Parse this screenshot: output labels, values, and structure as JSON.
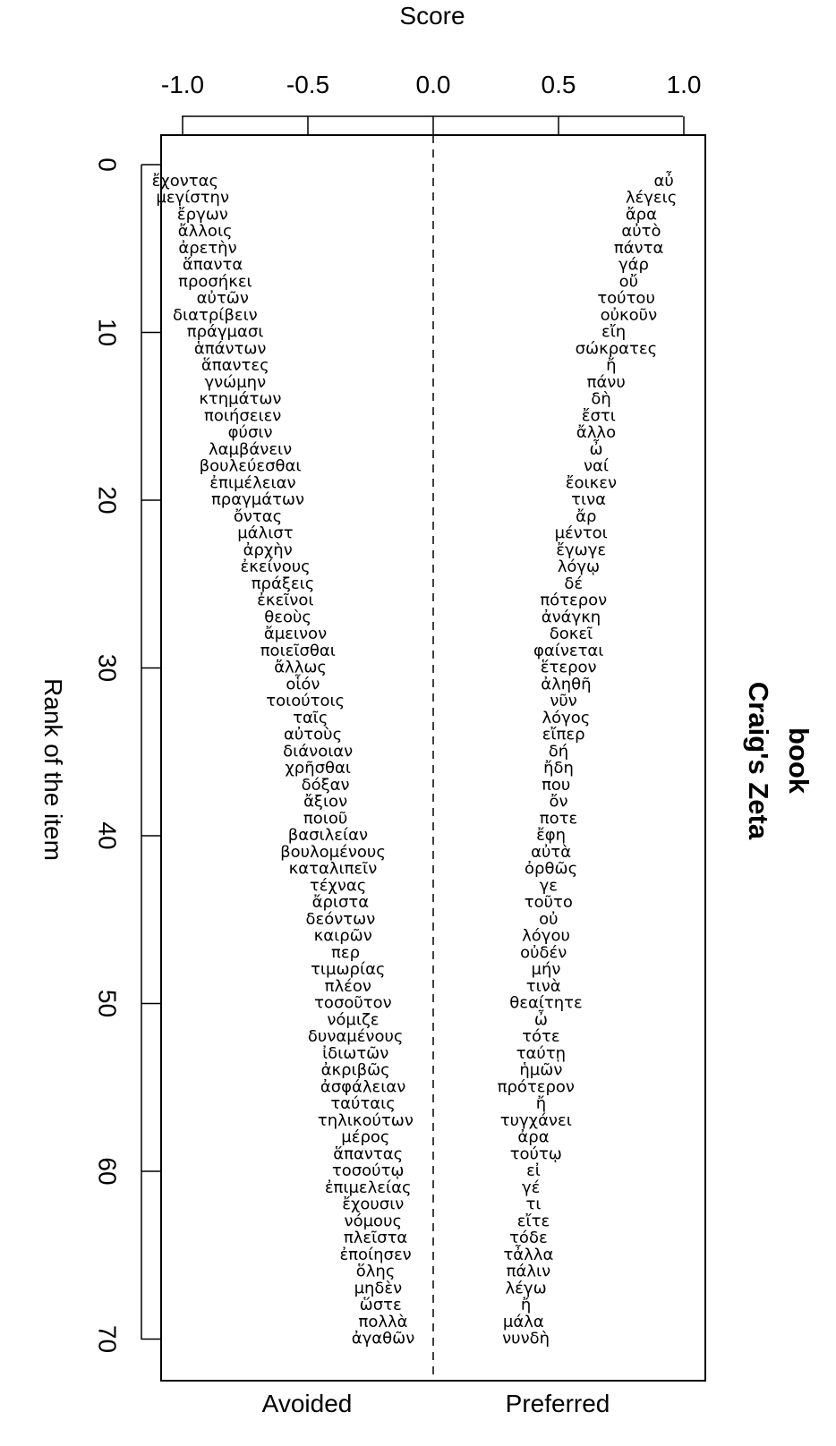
{
  "chart_data": {
    "type": "scatter",
    "title": "Craig's Zeta",
    "subtitle": "book",
    "xlabel": "Score",
    "ylabel": "Rank of the item",
    "xlim": [
      -1.0,
      1.0
    ],
    "ylim": [
      0,
      70
    ],
    "x_ticks": [
      -1.0,
      -0.5,
      0.0,
      0.5,
      1.0
    ],
    "x_tick_labels": [
      "-1.0",
      "-0.5",
      "0.0",
      "0.5",
      "1.0"
    ],
    "y_ticks": [
      0,
      10,
      20,
      30,
      40,
      50,
      60,
      70
    ],
    "y_tick_labels": [
      "0",
      "10",
      "20",
      "30",
      "40",
      "50",
      "60",
      "70"
    ],
    "reference_line_x": 0.0,
    "grid": false,
    "region_labels": {
      "left": "Avoided",
      "right": "Preferred"
    },
    "series": [
      {
        "name": "Avoided",
        "words": [
          "ἔχοντας",
          "μεγίστην",
          "ἔργων",
          "ἄλλοις",
          "ἀρετὴν",
          "ἅπαντα",
          "προσήκει",
          "αὐτῶν",
          "διατρίβειν",
          "πράγμασι",
          "ἁπάντων",
          "ἅπαντες",
          "γνώμην",
          "κτημάτων",
          "ποιήσειεν",
          "φύσιν",
          "λαμβάνειν",
          "βουλεύεσθαι",
          "ἐπιμέλειαν",
          "πραγμάτων",
          "ὄντας",
          "μάλιστ",
          "ἀρχὴν",
          "ἐκείνους",
          "πράξεις",
          "ἐκεῖνοι",
          "θεοὺς",
          "ἄμεινον",
          "ποιεῖσθαι",
          "ἄλλως",
          "οἷόν",
          "τοιούτοις",
          "ταῖς",
          "αὐτοὺς",
          "διάνοιαν",
          "χρῆσθαι",
          "δόξαν",
          "ἄξιον",
          "ποιοῦ",
          "βασιλείαν",
          "βουλομένους",
          "καταλιπεῖν",
          "τέχνας",
          "ἄριστα",
          "δεόντων",
          "καιρῶν",
          "περ",
          "τιμωρίας",
          "πλέον",
          "τοσοῦτον",
          "νόμιζε",
          "δυναμένους",
          "ἰδιωτῶν",
          "ἀκριβῶς",
          "ἀσφάλειαν",
          "ταύταις",
          "τηλικούτων",
          "μέρος",
          "ἅπαντας",
          "τοσούτῳ",
          "ἐπιμελείας",
          "ἔχουσιν",
          "νόμους",
          "πλεῖστα",
          "ἐποίησεν",
          "ὅλης",
          "μηδὲν",
          "ὥστε",
          "πολλὰ",
          "ἀγαθῶν"
        ],
        "ranks": [
          1,
          2,
          3,
          4,
          5,
          6,
          7,
          8,
          9,
          10,
          11,
          12,
          13,
          14,
          15,
          16,
          17,
          18,
          19,
          20,
          21,
          22,
          23,
          24,
          25,
          26,
          27,
          28,
          29,
          30,
          31,
          32,
          33,
          34,
          35,
          36,
          37,
          38,
          39,
          40,
          41,
          42,
          43,
          44,
          45,
          46,
          47,
          48,
          49,
          50,
          51,
          52,
          53,
          54,
          55,
          56,
          57,
          58,
          59,
          60,
          61,
          62,
          63,
          64,
          65,
          66,
          67,
          68,
          69,
          70
        ],
        "scores": [
          -0.99,
          -0.96,
          -0.92,
          -0.91,
          -0.9,
          -0.88,
          -0.87,
          -0.84,
          -0.87,
          -0.83,
          -0.81,
          -0.79,
          -0.79,
          -0.77,
          -0.76,
          -0.73,
          -0.73,
          -0.73,
          -0.72,
          -0.7,
          -0.7,
          -0.67,
          -0.66,
          -0.63,
          -0.6,
          -0.59,
          -0.58,
          -0.55,
          -0.54,
          -0.53,
          -0.52,
          -0.51,
          -0.49,
          -0.48,
          -0.46,
          -0.46,
          -0.43,
          -0.43,
          -0.43,
          -0.42,
          -0.4,
          -0.4,
          -0.38,
          -0.37,
          -0.37,
          -0.36,
          -0.35,
          -0.34,
          -0.34,
          -0.32,
          -0.32,
          -0.31,
          -0.31,
          -0.31,
          -0.28,
          -0.28,
          -0.27,
          -0.27,
          -0.26,
          -0.26,
          -0.26,
          -0.24,
          -0.24,
          -0.23,
          -0.23,
          -0.23,
          -0.22,
          -0.21,
          -0.2,
          -0.2
        ]
      },
      {
        "name": "Preferred",
        "words": [
          "αὖ",
          "λέγεις",
          "ἄρα",
          "αὐτὸ",
          "πάντα",
          "γάρ",
          "οὔ",
          "τούτου",
          "οὐκοῦν",
          "εἴη",
          "σώκρατες",
          "ἤ",
          "πάνυ",
          "δὴ",
          "ἔστι",
          "ἄλλο",
          "ὦ",
          "ναί",
          "ἔοικεν",
          "τινα",
          "ἄρ",
          "μέντοι",
          "ἔγωγε",
          "λόγῳ",
          "δέ",
          "πότερον",
          "ἀνάγκη",
          "δοκεῖ",
          "φαίνεται",
          "ἕτερον",
          "ἀληθῆ",
          "νῦν",
          "λόγος",
          "εἴπερ",
          "δή",
          "ἤδη",
          "που",
          "ὄν",
          "ποτε",
          "ἔφη",
          "αὐτὰ",
          "ὀρθῶς",
          "γε",
          "τοῦτο",
          "οὐ",
          "λόγου",
          "οὐδέν",
          "μήν",
          "τινὰ",
          "θεαίτητε",
          "ὦ",
          "τότε",
          "ταύτῃ",
          "ἡμῶν",
          "πρότερον",
          "ἤ",
          "τυγχάνει",
          "ἀρα",
          "τούτῳ",
          "εἰ",
          "γέ",
          "τι",
          "εἴτε",
          "τόδε",
          "τἆλλα",
          "πάλιν",
          "λέγω",
          "ἤ",
          "μάλα",
          "νυνδὴ"
        ],
        "ranks": [
          1,
          2,
          3,
          4,
          5,
          6,
          7,
          8,
          9,
          10,
          11,
          12,
          13,
          14,
          15,
          16,
          17,
          18,
          19,
          20,
          21,
          22,
          23,
          24,
          25,
          26,
          27,
          28,
          29,
          30,
          31,
          32,
          33,
          34,
          35,
          36,
          37,
          38,
          39,
          40,
          41,
          42,
          43,
          44,
          45,
          46,
          47,
          48,
          49,
          50,
          51,
          52,
          53,
          54,
          55,
          56,
          57,
          58,
          59,
          60,
          61,
          62,
          63,
          64,
          65,
          66,
          67,
          68,
          69,
          70
        ],
        "scores": [
          0.92,
          0.87,
          0.83,
          0.83,
          0.82,
          0.8,
          0.78,
          0.77,
          0.78,
          0.72,
          0.73,
          0.71,
          0.69,
          0.67,
          0.66,
          0.65,
          0.65,
          0.65,
          0.63,
          0.62,
          0.61,
          0.59,
          0.59,
          0.58,
          0.56,
          0.56,
          0.55,
          0.55,
          0.54,
          0.54,
          0.53,
          0.52,
          0.53,
          0.52,
          0.5,
          0.5,
          0.49,
          0.5,
          0.5,
          0.47,
          0.47,
          0.47,
          0.46,
          0.46,
          0.46,
          0.45,
          0.44,
          0.45,
          0.44,
          0.45,
          0.43,
          0.43,
          0.43,
          0.43,
          0.41,
          0.43,
          0.41,
          0.4,
          0.41,
          0.4,
          0.39,
          0.4,
          0.4,
          0.38,
          0.38,
          0.38,
          0.37,
          0.37,
          0.36,
          0.37
        ]
      }
    ]
  },
  "colors": {
    "background": "#ffffff",
    "foreground": "#000000"
  }
}
